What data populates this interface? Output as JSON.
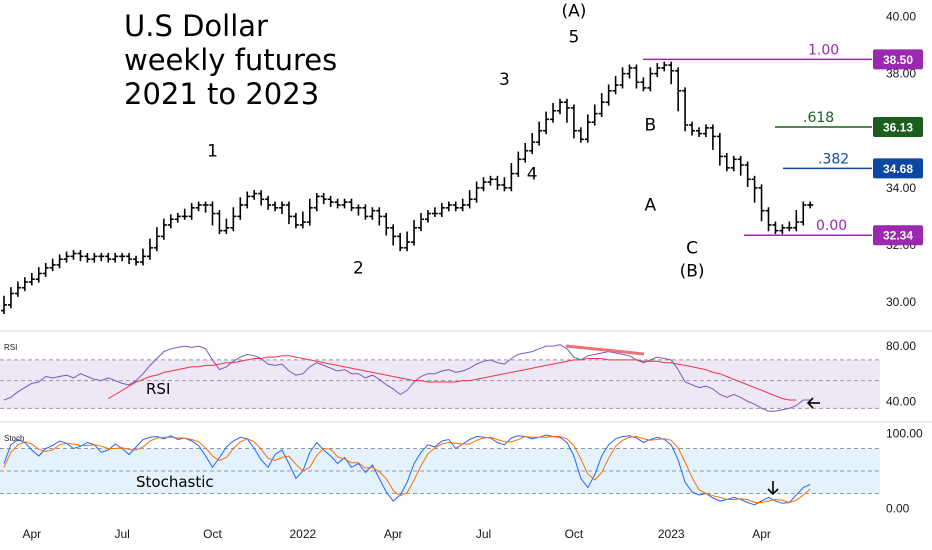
{
  "title_lines": [
    "U.S Dollar",
    "weekly futures",
    "2021 to 2023"
  ],
  "chart_data": {
    "type": "ohlc",
    "price": {
      "ylim": [
        29.3,
        40.3
      ],
      "ticks": [
        "30.00",
        "32.00",
        "34.00",
        "36.00",
        "38.00",
        "40.00"
      ],
      "values": [
        29.9,
        30.3,
        30.5,
        30.7,
        30.8,
        31.0,
        31.2,
        31.3,
        31.5,
        31.6,
        31.7,
        31.6,
        31.5,
        31.6,
        31.6,
        31.5,
        31.6,
        31.6,
        31.5,
        31.4,
        31.6,
        31.9,
        32.3,
        32.7,
        32.9,
        33.0,
        33.0,
        33.3,
        33.4,
        33.4,
        33.1,
        32.5,
        32.6,
        33.0,
        33.4,
        33.7,
        33.8,
        33.6,
        33.4,
        33.3,
        33.4,
        33.0,
        32.7,
        32.8,
        33.3,
        33.7,
        33.6,
        33.5,
        33.4,
        33.5,
        33.3,
        33.3,
        33.0,
        33.2,
        33.0,
        32.6,
        32.3,
        31.9,
        32.1,
        32.6,
        32.9,
        33.1,
        33.1,
        33.3,
        33.4,
        33.3,
        33.4,
        33.6,
        34.0,
        34.2,
        34.3,
        34.1,
        34.0,
        34.5,
        35.0,
        35.3,
        35.6,
        36.0,
        36.4,
        36.7,
        37.0,
        36.8,
        36.0,
        35.7,
        36.3,
        36.6,
        37.0,
        37.4,
        37.6,
        38.0,
        38.2,
        37.7,
        37.5,
        38.0,
        38.2,
        38.3,
        38.1,
        37.4,
        36.2,
        36.0,
        35.9,
        36.1,
        35.8,
        35.1,
        34.7,
        35.0,
        34.8,
        34.3,
        34.0,
        33.2,
        32.7,
        32.5,
        32.6,
        32.6,
        32.8,
        33.4,
        33.4
      ],
      "highs_lows": {
        "wave_5_high": 38.5,
        "wave_2_low": 31.8,
        "c_low": 32.34
      }
    },
    "rsi": {
      "ylim": [
        28,
        88
      ],
      "ticks": [
        "40.00",
        "80.00"
      ],
      "values": [
        41,
        43,
        47,
        50,
        53,
        54,
        58,
        57,
        58,
        59,
        57,
        60,
        58,
        56,
        55,
        57,
        55,
        53,
        52,
        55,
        60,
        66,
        71,
        76,
        78,
        79,
        80,
        79,
        80,
        78,
        70,
        63,
        65,
        69,
        72,
        74,
        73,
        71,
        67,
        66,
        67,
        62,
        59,
        60,
        65,
        68,
        66,
        64,
        62,
        63,
        60,
        60,
        57,
        59,
        56,
        52,
        49,
        45,
        48,
        54,
        58,
        60,
        60,
        62,
        63,
        61,
        62,
        64,
        67,
        69,
        70,
        68,
        67,
        71,
        74,
        75,
        76,
        78,
        80,
        80,
        81,
        78,
        72,
        70,
        73,
        74,
        75,
        76,
        75,
        74,
        73,
        70,
        68,
        70,
        72,
        71,
        70,
        63,
        54,
        52,
        50,
        51,
        49,
        45,
        43,
        45,
        43,
        40,
        38,
        35,
        33,
        33,
        34,
        35,
        37,
        41,
        41
      ],
      "ma": [
        42,
        45,
        48,
        51,
        54,
        56,
        58,
        59,
        61,
        62,
        63,
        64,
        65,
        65,
        66,
        66,
        67,
        68,
        68,
        69,
        70,
        71,
        71,
        72,
        72,
        73,
        73,
        72,
        71,
        70,
        69,
        68,
        67,
        66,
        65,
        64,
        63,
        62,
        61,
        60,
        59,
        58,
        57,
        56,
        55,
        55,
        54,
        54,
        54,
        54,
        54,
        55,
        55,
        56,
        57,
        58,
        59,
        60,
        61,
        62,
        63,
        64,
        65,
        66,
        67,
        68,
        69,
        70,
        70,
        71,
        71,
        71,
        70,
        70,
        70,
        70,
        70,
        69,
        69,
        69,
        68,
        68,
        67,
        66,
        65,
        64,
        63,
        61,
        60,
        58,
        56,
        54,
        52,
        50,
        48,
        46,
        44,
        42,
        41,
        41
      ],
      "ma_start_index": 15,
      "bands": [
        70,
        55,
        35
      ]
    },
    "stochastic": {
      "ylim": [
        -10,
        110
      ],
      "ticks": [
        "0.00",
        "100.00"
      ],
      "k": [
        60,
        85,
        92,
        88,
        78,
        70,
        80,
        84,
        90,
        87,
        80,
        83,
        88,
        85,
        75,
        78,
        86,
        80,
        72,
        82,
        92,
        95,
        96,
        93,
        97,
        92,
        94,
        90,
        84,
        70,
        55,
        68,
        82,
        90,
        95,
        93,
        80,
        65,
        55,
        72,
        78,
        60,
        40,
        50,
        75,
        88,
        78,
        70,
        60,
        68,
        55,
        60,
        48,
        58,
        40,
        22,
        10,
        18,
        35,
        60,
        75,
        85,
        82,
        90,
        92,
        80,
        86,
        92,
        96,
        95,
        94,
        88,
        85,
        94,
        97,
        96,
        93,
        95,
        98,
        96,
        95,
        88,
        70,
        40,
        28,
        45,
        70,
        85,
        93,
        96,
        97,
        94,
        88,
        92,
        95,
        92,
        85,
        65,
        35,
        22,
        18,
        20,
        14,
        10,
        12,
        15,
        12,
        8,
        5,
        10,
        15,
        10,
        7,
        8,
        18,
        28,
        32
      ],
      "d": [
        55,
        75,
        85,
        89,
        86,
        79,
        76,
        78,
        85,
        87,
        86,
        84,
        84,
        85,
        83,
        80,
        80,
        81,
        79,
        78,
        82,
        90,
        94,
        95,
        95,
        94,
        94,
        92,
        89,
        81,
        70,
        64,
        68,
        80,
        89,
        93,
        89,
        79,
        67,
        64,
        68,
        70,
        59,
        50,
        55,
        71,
        80,
        79,
        69,
        66,
        61,
        61,
        54,
        55,
        49,
        40,
        24,
        17,
        21,
        38,
        57,
        73,
        81,
        86,
        88,
        87,
        86,
        86,
        91,
        94,
        95,
        92,
        89,
        89,
        92,
        96,
        95,
        95,
        95,
        96,
        96,
        93,
        84,
        66,
        46,
        38,
        48,
        67,
        83,
        91,
        95,
        96,
        93,
        91,
        92,
        93,
        91,
        81,
        62,
        41,
        25,
        20,
        17,
        15,
        12,
        12,
        13,
        12,
        8,
        8,
        10,
        12,
        11,
        8,
        11,
        18,
        26
      ],
      "bands": [
        80,
        50,
        20
      ]
    },
    "x_ticks": [
      {
        "label": "Apr",
        "index": 4
      },
      {
        "label": "Jul",
        "index": 17
      },
      {
        "label": "Oct",
        "index": 30
      },
      {
        "label": "2022",
        "index": 43
      },
      {
        "label": "Apr",
        "index": 56
      },
      {
        "label": "Jul",
        "index": 69
      },
      {
        "label": "Oct",
        "index": 82
      },
      {
        "label": "2023",
        "index": 96
      },
      {
        "label": "Apr",
        "index": 109
      }
    ],
    "wave_labels": [
      {
        "text": "1",
        "index": 30,
        "price": 35.1
      },
      {
        "text": "2",
        "index": 51,
        "price": 31.0
      },
      {
        "text": "3",
        "index": 72,
        "price": 37.6
      },
      {
        "text": "4",
        "index": 76,
        "price": 34.3
      },
      {
        "text": "(A)",
        "index": 82,
        "price": 40.0
      },
      {
        "text": "5",
        "index": 82,
        "price": 39.1
      },
      {
        "text": "B",
        "index": 93,
        "price": 36.0
      },
      {
        "text": "A",
        "index": 93,
        "price": 33.2
      },
      {
        "text": "C",
        "index": 99,
        "price": 31.7
      },
      {
        "text": "(B)",
        "index": 99,
        "price": 30.9
      }
    ],
    "fibonacci": [
      {
        "ratio": "1.00",
        "price": 38.5,
        "tag": "38.50",
        "color": "#9c27b0",
        "tag_color": "#9c27b0"
      },
      {
        "ratio": ".618",
        "price": 36.13,
        "tag": "36.13",
        "color": "#1b5e20",
        "tag_color": "#1b5e20"
      },
      {
        "ratio": ".382",
        "price": 34.68,
        "tag": "34.68",
        "color": "#0d47a1",
        "tag_color": "#0d47a1"
      },
      {
        "ratio": "0.00",
        "price": 32.34,
        "tag": "32.34",
        "color": "#9c27b0",
        "tag_color": "#9c27b0"
      }
    ],
    "indicator_names": {
      "rsi_short": "RSI",
      "rsi_label": "RSI",
      "stoch_short": "Stoch",
      "stoch_label": "Stochastic"
    }
  },
  "colors": {
    "bars": "#000000",
    "rsi_line": "#7e57c2",
    "rsi_ma": "#f23645",
    "rsi_band_fill": "#ede7f6",
    "stoch_k": "#2962ff",
    "stoch_d": "#ff6d00",
    "stoch_band_fill": "#e3f2fd",
    "divergence": "#f27070",
    "grid": "#e0e3eb"
  }
}
